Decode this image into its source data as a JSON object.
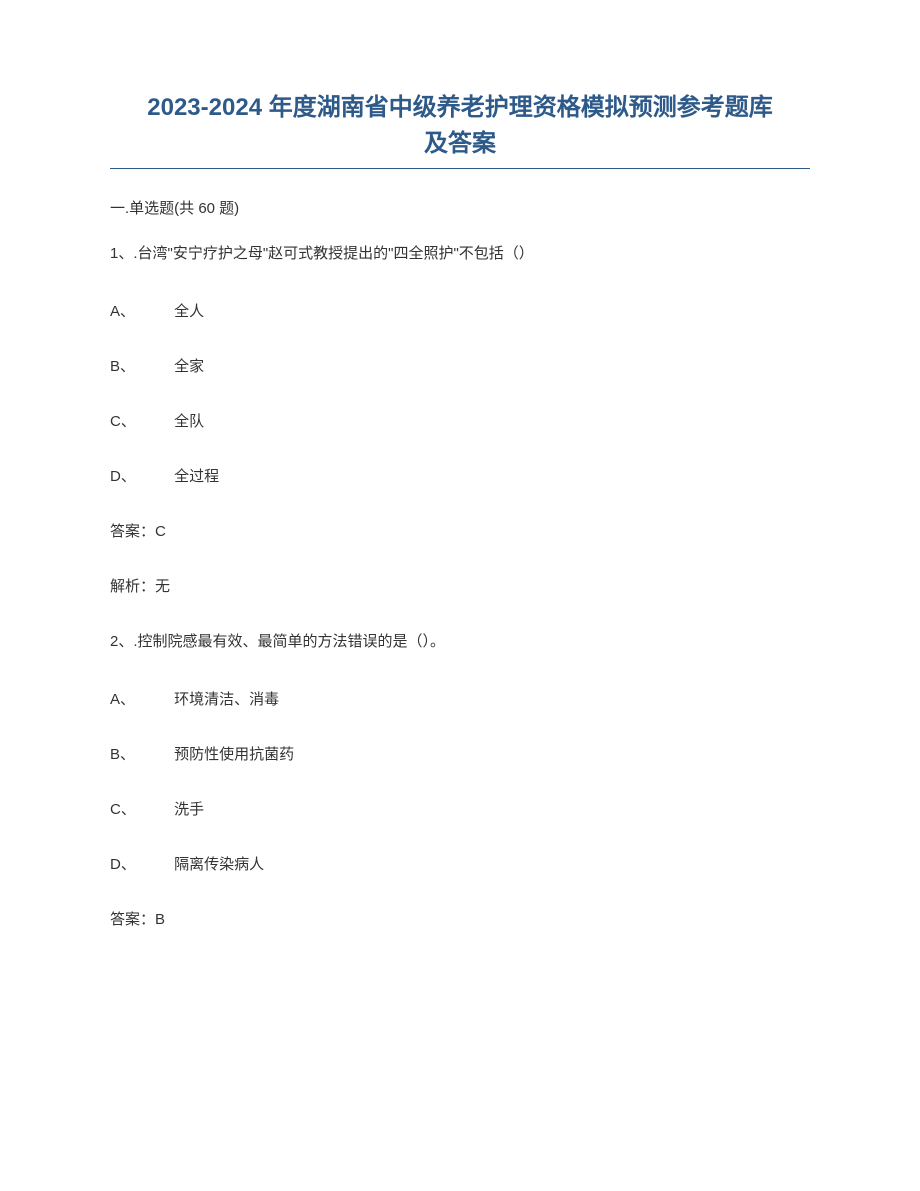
{
  "title_line1": "2023-2024 年度湖南省中级养老护理资格模拟预测参考题库",
  "title_line2": "及答案",
  "section_header": "一.单选题(共 60 题)",
  "questions": [
    {
      "stem": "1、.台湾\"安宁疗护之母\"赵可式教授提出的\"四全照护\"不包括（）",
      "options": [
        {
          "label": "A、",
          "text": "全人"
        },
        {
          "label": "B、",
          "text": "全家"
        },
        {
          "label": "C、",
          "text": "全队"
        },
        {
          "label": "D、",
          "text": "全过程"
        }
      ],
      "answer_label": "答案：",
      "answer_value": "C",
      "analysis_label": "解析：",
      "analysis_value": "无"
    },
    {
      "stem": "2、.控制院感最有效、最简单的方法错误的是（）。",
      "options": [
        {
          "label": "A、",
          "text": "环境清洁、消毒"
        },
        {
          "label": "B、",
          "text": "预防性使用抗菌药"
        },
        {
          "label": "C、",
          "text": "洗手"
        },
        {
          "label": "D、",
          "text": "隔离传染病人"
        }
      ],
      "answer_label": "答案：",
      "answer_value": "B"
    }
  ]
}
